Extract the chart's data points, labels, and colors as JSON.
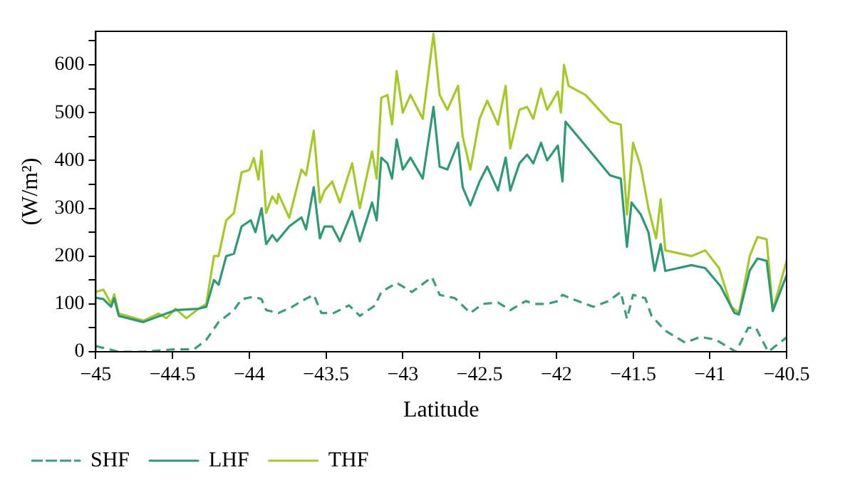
{
  "chart_data": {
    "type": "line",
    "xlabel": "Latitude",
    "ylabel": "(W/m²)",
    "xlim": [
      -45,
      -40.5
    ],
    "xticks": [
      -45,
      -44.5,
      -44,
      -43.5,
      -43,
      -42.5,
      -42,
      -41.5,
      -41,
      -40.5
    ],
    "ylim": [
      0,
      670
    ],
    "yticks": [
      0,
      {
        "value": 50,
        "label": null
      },
      100,
      {
        "value": 150,
        "label": null
      },
      200,
      {
        "value": 250,
        "label": null
      },
      300,
      {
        "value": 350,
        "label": null
      },
      400,
      {
        "value": 450,
        "label": null
      },
      500,
      {
        "value": 550,
        "label": null
      },
      600,
      {
        "value": 650,
        "label": null
      }
    ],
    "grid": false,
    "legend": "bottom",
    "marker": "none",
    "series": [
      {
        "name": "SHF",
        "color": "#3a9e7a",
        "line_style": "dashed",
        "x": [
          -45.0,
          -44.85,
          -44.69,
          -44.49,
          -44.36,
          -44.28,
          -44.2,
          -44.1,
          -44.05,
          -43.97,
          -43.92,
          -43.89,
          -43.81,
          -43.72,
          -43.66,
          -43.58,
          -43.53,
          -43.45,
          -43.35,
          -43.28,
          -43.18,
          -43.14,
          -43.04,
          -42.94,
          -42.81,
          -42.76,
          -42.66,
          -42.56,
          -42.48,
          -42.38,
          -42.3,
          -42.2,
          -42.14,
          -42.06,
          -41.99,
          -41.96,
          -41.91,
          -41.76,
          -41.66,
          -41.58,
          -41.54,
          -41.5,
          -41.42,
          -41.38,
          -41.29,
          -41.16,
          -41.06,
          -40.96,
          -40.83,
          -40.75,
          -40.7,
          -40.62,
          -40.5
        ],
        "values": [
          12,
          0,
          0,
          5,
          5,
          25,
          62,
          87,
          110,
          115,
          110,
          87,
          81,
          94,
          106,
          119,
          81,
          81,
          97,
          75,
          97,
          125,
          144,
          125,
          156,
          119,
          112,
          81,
          100,
          103,
          87,
          106,
          100,
          100,
          106,
          119,
          112,
          94,
          106,
          125,
          69,
          119,
          112,
          75,
          44,
          19,
          31,
          25,
          0,
          50,
          50,
          0,
          30
        ]
      },
      {
        "name": "LHF",
        "color": "#2e9a74",
        "line_style": "solid",
        "x": [
          -45.0,
          -44.95,
          -44.9,
          -44.88,
          -44.85,
          -44.69,
          -44.48,
          -44.33,
          -44.28,
          -44.23,
          -44.2,
          -44.15,
          -44.1,
          -44.05,
          -43.99,
          -43.96,
          -43.92,
          -43.89,
          -43.85,
          -43.82,
          -43.74,
          -43.66,
          -43.63,
          -43.58,
          -43.54,
          -43.51,
          -43.46,
          -43.41,
          -43.33,
          -43.28,
          -43.2,
          -43.17,
          -43.14,
          -43.1,
          -43.07,
          -43.04,
          -43.0,
          -42.95,
          -42.87,
          -42.8,
          -42.76,
          -42.71,
          -42.64,
          -42.61,
          -42.56,
          -42.5,
          -42.45,
          -42.38,
          -42.33,
          -42.3,
          -42.24,
          -42.19,
          -42.15,
          -42.1,
          -42.06,
          -41.99,
          -41.96,
          -41.94,
          -41.81,
          -41.65,
          -41.58,
          -41.54,
          -41.51,
          -41.45,
          -41.4,
          -41.36,
          -41.32,
          -41.29,
          -41.12,
          -41.03,
          -40.93,
          -40.84,
          -40.81,
          -40.74,
          -40.69,
          -40.63,
          -40.59,
          -40.5
        ],
        "values": [
          113,
          110,
          94,
          112,
          75,
          62,
          87,
          90,
          94,
          150,
          140,
          200,
          205,
          262,
          275,
          250,
          300,
          225,
          244,
          231,
          262,
          281,
          256,
          344,
          237,
          262,
          262,
          231,
          294,
          231,
          312,
          275,
          406,
          394,
          362,
          444,
          381,
          406,
          362,
          512,
          387,
          381,
          437,
          344,
          306,
          356,
          387,
          337,
          406,
          337,
          394,
          412,
          394,
          437,
          400,
          431,
          356,
          481,
          431,
          369,
          362,
          219,
          312,
          287,
          250,
          169,
          225,
          169,
          181,
          175,
          137,
          81,
          78,
          170,
          195,
          190,
          85,
          160
        ]
      },
      {
        "name": "THF",
        "color": "#a6c92a",
        "line_style": "solid",
        "x": [
          -45.0,
          -44.95,
          -44.9,
          -44.88,
          -44.85,
          -44.69,
          -44.59,
          -44.54,
          -44.48,
          -44.41,
          -44.33,
          -44.28,
          -44.23,
          -44.2,
          -44.15,
          -44.1,
          -44.05,
          -44.0,
          -43.97,
          -43.94,
          -43.92,
          -43.89,
          -43.85,
          -43.82,
          -43.81,
          -43.74,
          -43.66,
          -43.63,
          -43.58,
          -43.54,
          -43.51,
          -43.46,
          -43.41,
          -43.33,
          -43.28,
          -43.2,
          -43.17,
          -43.14,
          -43.1,
          -43.07,
          -43.04,
          -43.0,
          -42.95,
          -42.87,
          -42.8,
          -42.76,
          -42.71,
          -42.64,
          -42.61,
          -42.56,
          -42.5,
          -42.45,
          -42.38,
          -42.33,
          -42.3,
          -42.24,
          -42.19,
          -42.15,
          -42.1,
          -42.06,
          -41.99,
          -41.97,
          -41.95,
          -41.92,
          -41.81,
          -41.65,
          -41.58,
          -41.54,
          -41.5,
          -41.45,
          -41.4,
          -41.35,
          -41.32,
          -41.29,
          -41.12,
          -41.03,
          -40.94,
          -40.86,
          -40.81,
          -40.74,
          -40.69,
          -40.63,
          -40.59,
          -40.5
        ],
        "values": [
          125,
          130,
          100,
          120,
          80,
          65,
          80,
          70,
          90,
          70,
          90,
          100,
          200,
          200,
          275,
          290,
          375,
          380,
          405,
          360,
          420,
          290,
          325,
          310,
          330,
          280,
          381,
          369,
          462,
          312,
          337,
          356,
          312,
          394,
          300,
          419,
          362,
          531,
          537,
          475,
          587,
          500,
          537,
          487,
          665,
          537,
          506,
          556,
          450,
          381,
          487,
          525,
          475,
          556,
          425,
          506,
          512,
          487,
          550,
          506,
          544,
          500,
          600,
          556,
          537,
          481,
          475,
          287,
          437,
          387,
          300,
          237,
          319,
          212,
          200,
          212,
          175,
          94,
          81,
          200,
          240,
          235,
          87,
          190
        ]
      }
    ]
  }
}
